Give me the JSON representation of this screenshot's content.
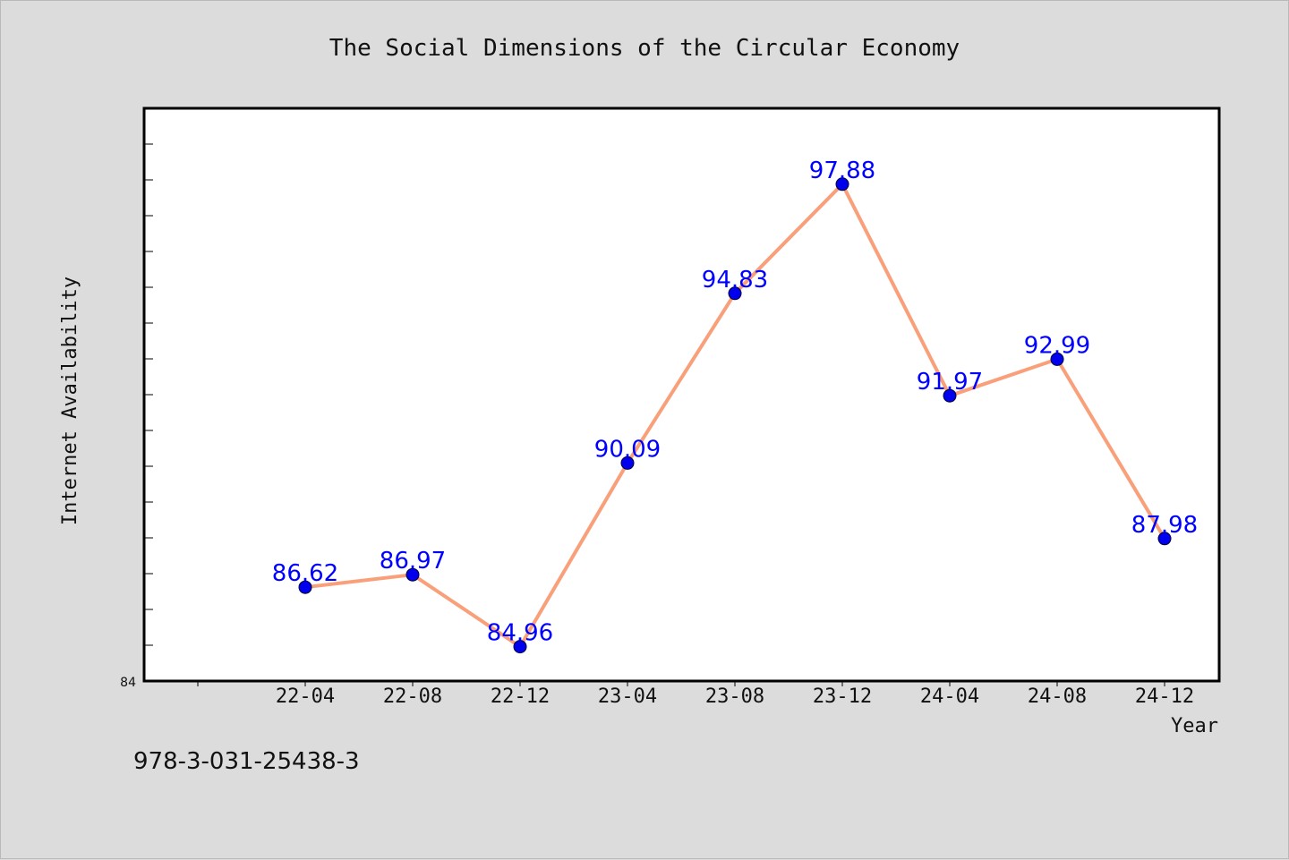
{
  "chart_data": {
    "type": "line",
    "title": "The Social Dimensions of the Circular Economy",
    "xlabel": "Year",
    "ylabel": "Internet Availability",
    "categories": [
      "22-04",
      "22-08",
      "22-12",
      "23-04",
      "23-08",
      "23-12",
      "24-04",
      "24-08",
      "24-12"
    ],
    "series": [
      {
        "values": [
          86.62,
          86.97,
          84.96,
          90.09,
          94.83,
          97.88,
          91.97,
          92.99,
          87.98
        ],
        "labels": [
          "86.62",
          "86.97",
          "84.96",
          "90.09",
          "94.83",
          "97.88",
          "91.97",
          "92.99",
          "87.98"
        ],
        "line_color": "#f9a07a",
        "marker_color": "#0000ee"
      }
    ],
    "ylim": [
      84,
      100
    ],
    "y_tick_labels": [
      "84"
    ],
    "label_color": "#0000ff",
    "grid": false,
    "legend": "none"
  },
  "footer": {
    "isbn": "978-3-031-25438-3"
  }
}
